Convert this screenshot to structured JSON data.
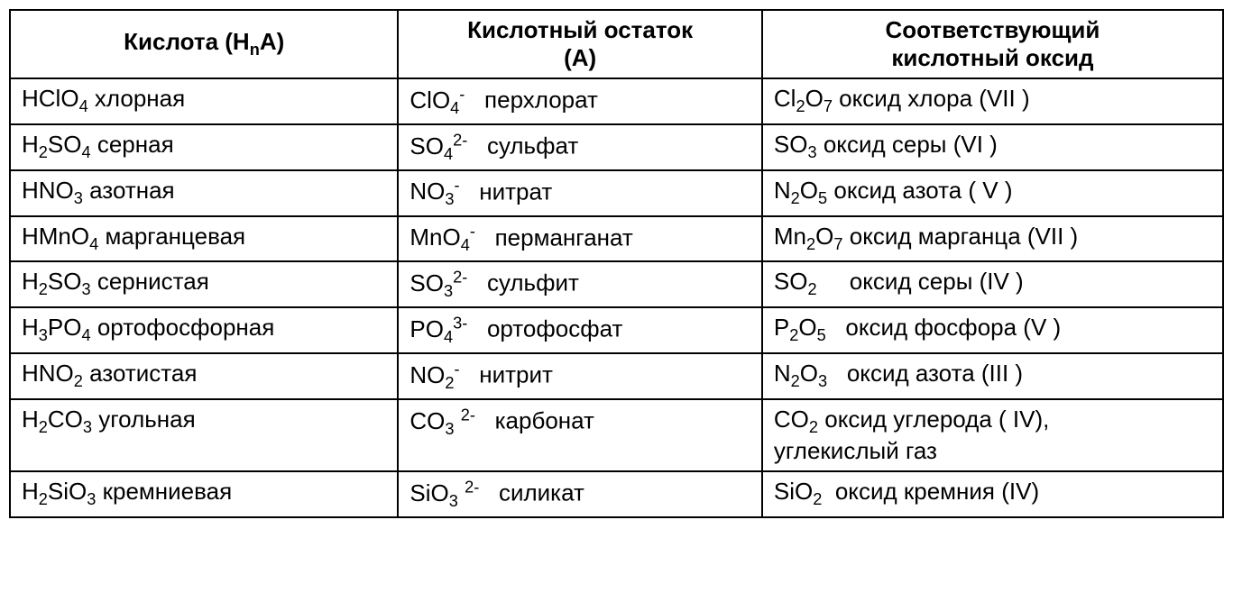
{
  "table": {
    "type": "table",
    "background_color": "#ffffff",
    "border_color": "#000000",
    "border_width": 2,
    "font_family": "Arial",
    "cell_fontsize": 26,
    "header_fontweight": "bold",
    "column_widths_pct": [
      32,
      30,
      38
    ],
    "headers": {
      "col1_line1": "Кислота (H",
      "col1_sub": "n",
      "col1_line1_end": "A)",
      "col2_line1": "Кислотный остаток",
      "col2_line2": "(A)",
      "col3_line1": "Соответствующий",
      "col3_line2": "кислотный оксид"
    },
    "rows": [
      {
        "acid_formula": "HClO<sub>4</sub>",
        "acid_name": "хлорная",
        "residue_formula": "ClO<sub>4</sub><sup>-</sup>",
        "residue_name": "перхлорат",
        "oxide_formula": "Cl<sub>2</sub>O<sub>7</sub>",
        "oxide_name": "оксид хлора (VII )"
      },
      {
        "acid_formula": "H<sub>2</sub>SO<sub>4</sub>",
        "acid_name": "серная",
        "residue_formula": "SO<sub>4</sub><sup>2-</sup>",
        "residue_name": "сульфат",
        "oxide_formula": "SO<sub>3</sub>",
        "oxide_name": "оксид серы (VI )"
      },
      {
        "acid_formula": "HNO<sub>3</sub>",
        "acid_name": "азотная",
        "residue_formula": "NO<sub>3</sub><sup>-</sup>",
        "residue_name": "нитрат",
        "oxide_formula": "N<sub>2</sub>O<sub>5</sub>",
        "oxide_name": "оксид азота ( V )"
      },
      {
        "acid_formula": "HMnO<sub>4</sub>",
        "acid_name": "марганцевая",
        "residue_formula": "MnO<sub>4</sub><sup>-</sup>",
        "residue_name": "перманганат",
        "oxide_formula": "Mn<sub>2</sub>O<sub>7</sub>",
        "oxide_name": "оксид марганца (VII )"
      },
      {
        "acid_formula": "H<sub>2</sub>SO<sub>3</sub>",
        "acid_name": "сернистая",
        "residue_formula": "SO<sub>3</sub><sup>2-</sup>",
        "residue_name": "сульфит",
        "oxide_formula": "SO<sub>2</sub>&nbsp;&nbsp;&nbsp;&nbsp;",
        "oxide_name": "оксид серы (IV )"
      },
      {
        "acid_formula": "H<sub>3</sub>PO<sub>4</sub>",
        "acid_name": "ортофосфорная",
        "residue_formula": "PO<sub>4</sub><sup>3-</sup>",
        "residue_name": "ортофосфат",
        "oxide_formula": "P<sub>2</sub>O<sub>5</sub>&nbsp;&nbsp;",
        "oxide_name": "оксид фосфора (V )"
      },
      {
        "acid_formula": "HNO<sub>2</sub>",
        "acid_name": "азотистая",
        "residue_formula": "NO<sub>2</sub><sup>-</sup>",
        "residue_name": "нитрит",
        "oxide_formula": "N<sub>2</sub>O<sub>3</sub>&nbsp;&nbsp;",
        "oxide_name": "оксид азота (III )"
      },
      {
        "acid_formula": "H<sub>2</sub>CO<sub>3</sub>",
        "acid_name": "угольная",
        "residue_formula": "CO<sub>3</sub> <sup>2-</sup>",
        "residue_name": "карбонат",
        "oxide_formula": "CO<sub>2</sub>",
        "oxide_name": "оксид углерода ( IV),<br>углекислый газ"
      },
      {
        "acid_formula": "H<sub>2</sub>SiO<sub>3</sub>",
        "acid_name": "кремниевая",
        "residue_formula": "SiO<sub>3</sub> <sup>2-</sup>",
        "residue_name": "силикат",
        "oxide_formula": "SiO<sub>2</sub>&nbsp;",
        "oxide_name": "оксид кремния (IV)"
      }
    ]
  }
}
